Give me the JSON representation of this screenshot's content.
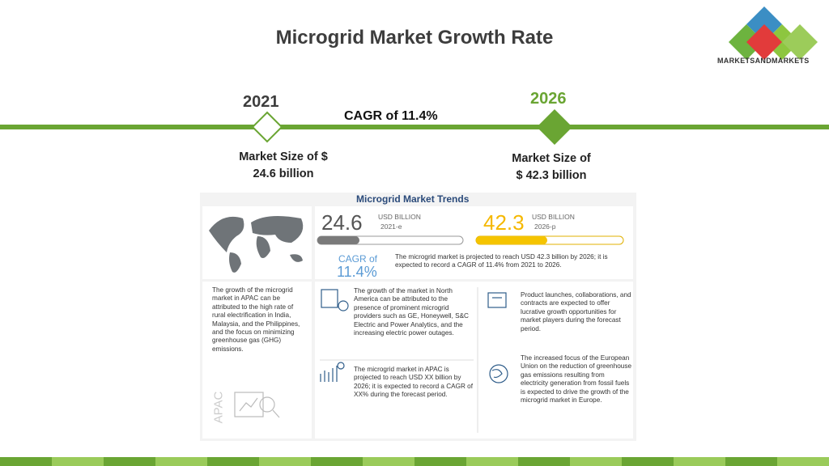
{
  "header": {
    "title": "Microgrid Market Growth Rate",
    "logo": "MARKETSANDMARKETS"
  },
  "timeline": {
    "start": {
      "year": "2021",
      "size_lines": [
        "Market Size of $",
        "24.6 billion"
      ]
    },
    "end": {
      "year": "2026",
      "size_lines": [
        "Market Size of",
        "$ 42.3 billion"
      ]
    },
    "cagr": "CAGR of 11.4%"
  },
  "infographic": {
    "title": "Microgrid Market Trends",
    "metrics": [
      {
        "value": "24.6",
        "unit": "USD BILLION",
        "year": "2021-e"
      },
      {
        "value": "42.3",
        "unit": "USD BILLION",
        "year": "2026-p"
      }
    ],
    "cagr_label": "CAGR of",
    "cagr_value": "11.4%",
    "summary": "The microgrid market is projected to reach USD 42.3 billion by 2026; it is expected to record a CAGR of 11.4% from 2021 to 2026.",
    "region_label": "APAC",
    "apac_note": "The growth of the microgrid market in APAC can be attributed to the high rate of rural electrification in India, Malaysia, and the Philippines, and the focus on minimizing greenhouse gas (GHG) emissions.",
    "points": [
      "The growth of the market in North America can be attributed to the presence of prominent microgrid providers such as GE, Honeywell, S&C Electric and Power Analytics, and the increasing electric power outages.",
      "Product launches, collaborations, and contracts are expected to offer lucrative growth opportunities for market players during the forecast period.",
      "The microgrid market in APAC is projected to reach USD XX billion by 2026; it is expected to record a CAGR of XX% during the forecast period.",
      "The increased focus of the European Union on the reduction of greenhouse gas emissions resulting from electricity generation from fossil fuels is expected to drive the growth of the microgrid market in Europe."
    ]
  }
}
